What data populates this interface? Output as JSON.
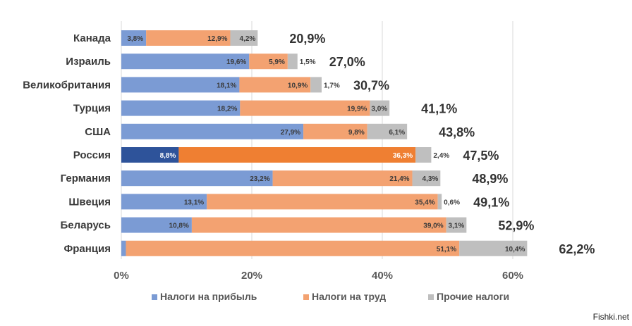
{
  "chart_data": {
    "type": "bar",
    "orientation": "horizontal",
    "stacked": true,
    "categories": [
      "Канада",
      "Израиль",
      "Великобритания",
      "Турция",
      "США",
      "Россия",
      "Германия",
      "Швеция",
      "Беларусь",
      "Франция"
    ],
    "series": [
      {
        "name": "Налоги на прибыль",
        "color": "#7b9bd4",
        "values": [
          3.8,
          19.6,
          18.1,
          18.2,
          27.9,
          8.8,
          23.2,
          13.1,
          10.8,
          0.7
        ],
        "labels": [
          "3,8%",
          "19,6%",
          "18,1%",
          "18,2%",
          "27,9%",
          "8,8%",
          "23,2%",
          "13,1%",
          "10,8%",
          "0,7%"
        ]
      },
      {
        "name": "Налоги на труд",
        "color": "#f3a271",
        "values": [
          12.9,
          5.9,
          10.9,
          19.9,
          9.8,
          36.3,
          21.4,
          35.4,
          39.0,
          51.1
        ],
        "labels": [
          "12,9%",
          "5,9%",
          "10,9%",
          "19,9%",
          "9,8%",
          "36,3%",
          "21,4%",
          "35,4%",
          "39,0%",
          "51,1%"
        ]
      },
      {
        "name": "Прочие налоги",
        "color": "#bfbfbf",
        "values": [
          4.2,
          1.5,
          1.7,
          3.0,
          6.1,
          2.4,
          4.3,
          0.6,
          3.1,
          10.4
        ],
        "labels": [
          "4,2%",
          "1,5%",
          "1,7%",
          "3,0%",
          "6,1%",
          "2,4%",
          "4,3%",
          "0,6%",
          "3,1%",
          "10,4%"
        ]
      }
    ],
    "totals": [
      "20,9%",
      "27,0%",
      "30,7%",
      "41,1%",
      "43,8%",
      "47,5%",
      "48,9%",
      "49,1%",
      "52,9%",
      "62,2%"
    ],
    "highlight": {
      "category": "Россия",
      "colors": [
        "#2e539a",
        "#ef7f32",
        "#bfbfbf"
      ]
    },
    "xlim": [
      0,
      65
    ],
    "xticks": [
      0,
      20,
      40,
      60
    ],
    "xtick_labels": [
      "0%",
      "20%",
      "40%",
      "60%"
    ],
    "grid": true,
    "legend": "bottom"
  },
  "watermark": "Fishki.net"
}
